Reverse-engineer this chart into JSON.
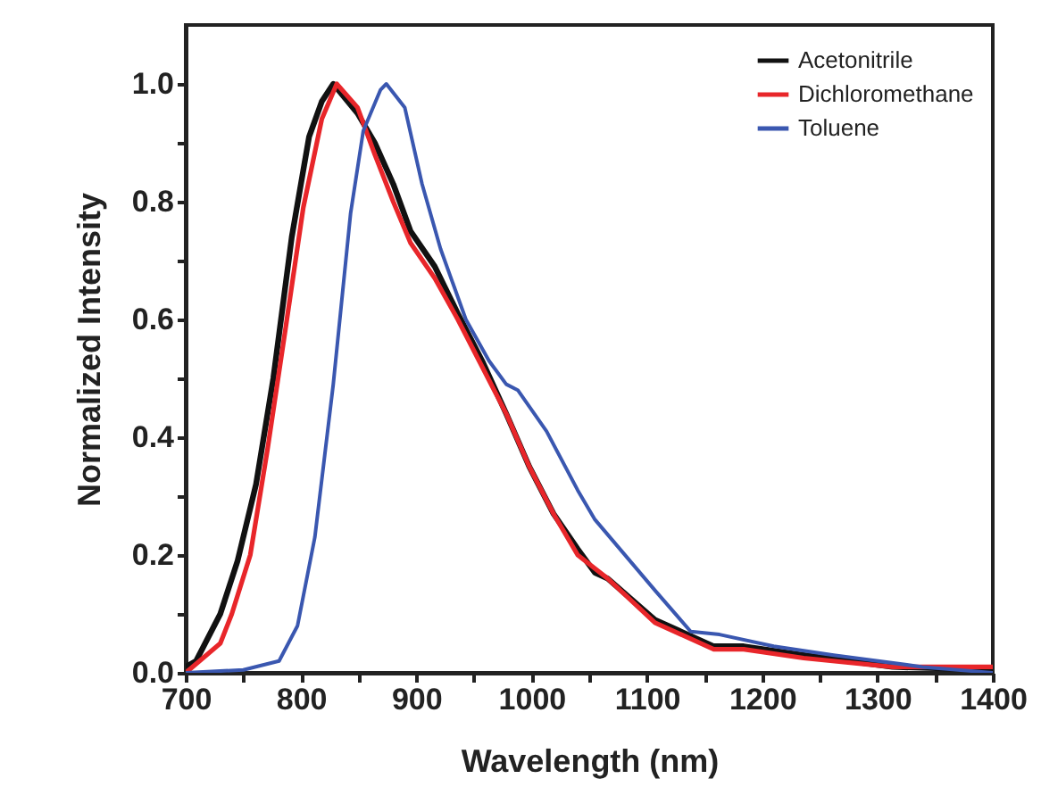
{
  "chart_data": {
    "type": "line",
    "xlabel": "Wavelength (nm)",
    "ylabel": "Normalized Intensity",
    "xlim": [
      700,
      1400
    ],
    "ylim": [
      0,
      1.1
    ],
    "xticks": [
      700,
      {
        "value": 750,
        "label": null
      },
      800,
      {
        "value": 850,
        "label": null
      },
      900,
      {
        "value": 950,
        "label": null
      },
      1000,
      {
        "value": 1050,
        "label": null
      },
      1100,
      {
        "value": 1150,
        "label": null
      },
      1200,
      {
        "value": 1250,
        "label": null
      },
      1300,
      {
        "value": 1350,
        "label": null
      },
      1400
    ],
    "yticks": [
      {
        "value": 0,
        "label": "0.0"
      },
      {
        "value": 0.1,
        "label": null
      },
      0.2,
      {
        "value": 0.3,
        "label": null
      },
      0.4,
      {
        "value": 0.5,
        "label": null
      },
      0.6,
      {
        "value": 0.7,
        "label": null
      },
      0.8,
      {
        "value": 0.9,
        "label": null
      },
      {
        "value": 1,
        "label": "1.0"
      }
    ],
    "legend": "top right",
    "grid": false,
    "line_style": "solid",
    "marker": "none",
    "series": [
      {
        "name": "Acetonitrile",
        "color": "#111111",
        "x": [
          700,
          709,
          730,
          745,
          761,
          776,
          792,
          807,
          818,
          828,
          849,
          864,
          880,
          895,
          916,
          936,
          957,
          978,
          998,
          1019,
          1040,
          1055,
          1066,
          1107,
          1158,
          1184,
          1236,
          1313,
          1400
        ],
        "values": [
          0.01,
          0.02,
          0.1,
          0.19,
          0.32,
          0.5,
          0.74,
          0.91,
          0.97,
          1.0,
          0.95,
          0.9,
          0.83,
          0.75,
          0.69,
          0.61,
          0.53,
          0.44,
          0.35,
          0.27,
          0.21,
          0.17,
          0.16,
          0.09,
          0.045,
          0.045,
          0.03,
          0.01,
          0.005
        ]
      },
      {
        "name": "Dichloromethane",
        "color": "#e8262a",
        "x": [
          700,
          730,
          740,
          756,
          771,
          787,
          802,
          818,
          831,
          849,
          864,
          880,
          895,
          916,
          936,
          957,
          978,
          998,
          1019,
          1040,
          1066,
          1107,
          1158,
          1184,
          1236,
          1313,
          1400
        ],
        "values": [
          0.0,
          0.05,
          0.1,
          0.2,
          0.38,
          0.59,
          0.79,
          0.94,
          1.0,
          0.96,
          0.88,
          0.8,
          0.73,
          0.67,
          0.6,
          0.52,
          0.44,
          0.35,
          0.27,
          0.2,
          0.16,
          0.085,
          0.04,
          0.04,
          0.025,
          0.01,
          0.01
        ]
      },
      {
        "name": "Toluene",
        "color": "#3a57b0",
        "x": [
          700,
          750,
          781,
          797,
          812,
          828,
          843,
          854,
          869,
          874,
          890,
          905,
          921,
          943,
          963,
          978,
          988,
          1013,
          1040,
          1055,
          1107,
          1138,
          1163,
          1210,
          1262,
          1339,
          1400
        ],
        "values": [
          0.0,
          0.005,
          0.02,
          0.08,
          0.23,
          0.49,
          0.78,
          0.92,
          0.99,
          1.0,
          0.96,
          0.83,
          0.72,
          0.6,
          0.53,
          0.49,
          0.48,
          0.41,
          0.31,
          0.26,
          0.14,
          0.07,
          0.065,
          0.045,
          0.03,
          0.01,
          0.0
        ]
      }
    ]
  }
}
